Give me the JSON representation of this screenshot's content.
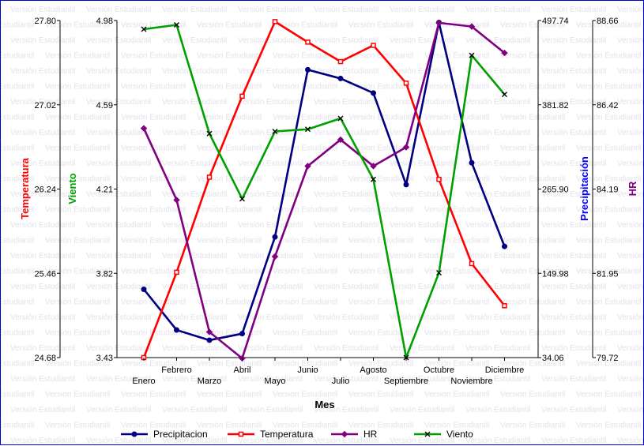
{
  "watermark": "Versión Estudiantil",
  "chart_data": {
    "type": "line",
    "xlabel": "Mes",
    "categories": [
      "Enero",
      "Febrero",
      "Marzo",
      "Abril",
      "Mayo",
      "Junio",
      "Julio",
      "Agosto",
      "Septiembre",
      "Octubre",
      "Noviembre",
      "Diciembre"
    ],
    "axes": {
      "temperatura": {
        "label": "Temperatura",
        "side": "left-outer",
        "min": 24.68,
        "max": 27.8,
        "ticks": [
          "27.80",
          "27.02",
          "26.24",
          "25.46",
          "24.68"
        ],
        "color": "#ff0000"
      },
      "viento": {
        "label": "Viento",
        "side": "left-inner",
        "min": 3.43,
        "max": 4.98,
        "ticks": [
          "4.98",
          "4.59",
          "4.21",
          "3.82",
          "3.43"
        ],
        "color": "#00a000"
      },
      "precipitacion": {
        "label": "Precipitación",
        "side": "right-inner",
        "min": 34.06,
        "max": 497.74,
        "ticks": [
          "497.74",
          "381.82",
          "265.90",
          "149.98",
          "34.06"
        ],
        "color": "#0000ff"
      },
      "hr": {
        "label": "HR",
        "side": "right-outer",
        "min": 79.72,
        "max": 88.66,
        "ticks": [
          "88.66",
          "86.42",
          "84.19",
          "81.95",
          "79.72"
        ],
        "color": "#800080"
      }
    },
    "series": [
      {
        "name": "Precipitacion",
        "axis": "precipitacion",
        "color": "#000080",
        "marker": "circle",
        "values": [
          128,
          72,
          58,
          67,
          200,
          430,
          418,
          398,
          272,
          495,
          302,
          187
        ]
      },
      {
        "name": "Temperatura",
        "axis": "temperatura",
        "color": "#ff0000",
        "marker": "square",
        "values": [
          24.68,
          25.47,
          26.35,
          27.1,
          27.79,
          27.6,
          27.42,
          27.57,
          27.22,
          26.33,
          25.55,
          25.16
        ]
      },
      {
        "name": "HR",
        "axis": "hr",
        "color": "#800080",
        "marker": "diamond",
        "values": [
          85.8,
          83.9,
          80.4,
          79.7,
          82.4,
          84.8,
          85.5,
          84.8,
          85.3,
          88.6,
          88.5,
          87.8
        ]
      },
      {
        "name": "Viento",
        "axis": "viento",
        "color": "#00a000",
        "marker": "cross",
        "values": [
          4.94,
          4.96,
          4.46,
          4.16,
          4.47,
          4.48,
          4.53,
          4.25,
          3.43,
          3.82,
          4.82,
          4.64
        ]
      }
    ],
    "legend": "bottom",
    "grid": false
  }
}
